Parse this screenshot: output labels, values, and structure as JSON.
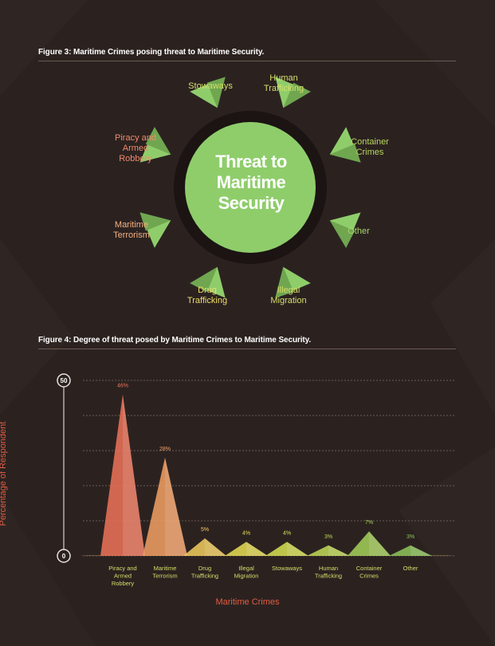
{
  "figure3": {
    "title": "Figure 3: Maritime Crimes posing threat to Maritime Security.",
    "center": [
      "Threat to",
      "Maritime",
      "Security"
    ],
    "labels": [
      {
        "lines": [
          "Stowaways"
        ],
        "color": "#d7df6a"
      },
      {
        "lines": [
          "Human",
          "Trafficking"
        ],
        "color": "#d7df6a"
      },
      {
        "lines": [
          "Container",
          "Crimes"
        ],
        "color": "#b8d65e"
      },
      {
        "lines": [
          "Other"
        ],
        "color": "#a8d46a"
      },
      {
        "lines": [
          "Illegal",
          "Migration"
        ],
        "color": "#d7df6a"
      },
      {
        "lines": [
          "Drug",
          "Trafficking"
        ],
        "color": "#f0dc6a"
      },
      {
        "lines": [
          "Maritime",
          "Terrorism"
        ],
        "color": "#f4b081"
      },
      {
        "lines": [
          "Piracy and",
          "Armed",
          "Robbery"
        ],
        "color": "#f08a6a"
      }
    ]
  },
  "figure4": {
    "title": "Figure 4: Degree of threat posed by Maritime Crimes to Maritime Security."
  },
  "chart_data": {
    "type": "area",
    "title": "Figure 4: Degree of threat posed by Maritime Crimes to Maritime Security.",
    "xlabel": "Maritime Crimes",
    "ylabel": "Percentage of Respondent",
    "ylim": [
      0,
      50
    ],
    "yticks": [
      "0",
      "50"
    ],
    "grid": true,
    "categories": [
      [
        "Piracy and",
        "Armed",
        "Robbery"
      ],
      [
        "Maritime",
        "Terrorism"
      ],
      [
        "Drug",
        "Trafficking"
      ],
      [
        "Illegal",
        "Migration"
      ],
      [
        "Stowaways"
      ],
      [
        "Human",
        "Trafficking"
      ],
      [
        "Container",
        "Crimes"
      ],
      [
        "Other"
      ]
    ],
    "values": [
      46,
      28,
      5,
      4,
      4,
      3,
      7,
      3
    ],
    "value_labels": [
      "46%",
      "28%",
      "5%",
      "4%",
      "4%",
      "3%",
      "7%",
      "3%"
    ],
    "colors": [
      "#ee7359",
      "#f3a064",
      "#f2cc5e",
      "#e8de55",
      "#d7e052",
      "#c2db58",
      "#a4d059",
      "#8ec65c"
    ]
  }
}
